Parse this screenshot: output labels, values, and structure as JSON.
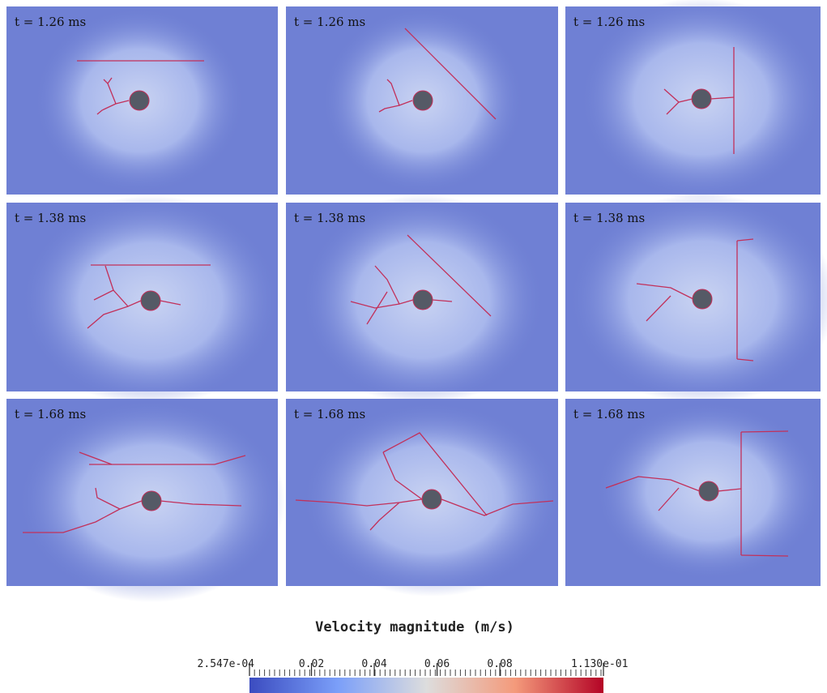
{
  "panels": [
    {
      "label": "t = 1.26 ms"
    },
    {
      "label": "t = 1.26 ms"
    },
    {
      "label": "t = 1.26 ms"
    },
    {
      "label": "t = 1.38 ms"
    },
    {
      "label": "t = 1.38 ms"
    },
    {
      "label": "t = 1.38 ms"
    },
    {
      "label": "t = 1.68 ms"
    },
    {
      "label": "t = 1.68 ms"
    },
    {
      "label": "t = 1.68 ms"
    }
  ],
  "colorbar": {
    "title": "Velocity magnitude (m/s)",
    "range": [
      0.0002547,
      0.113
    ],
    "ticks": [
      {
        "value": 0.0002547,
        "label": "2.547e-04"
      },
      0.02,
      0.04,
      0.06,
      0.08,
      {
        "value": 0.113,
        "label": "1.130e-01"
      }
    ]
  }
}
